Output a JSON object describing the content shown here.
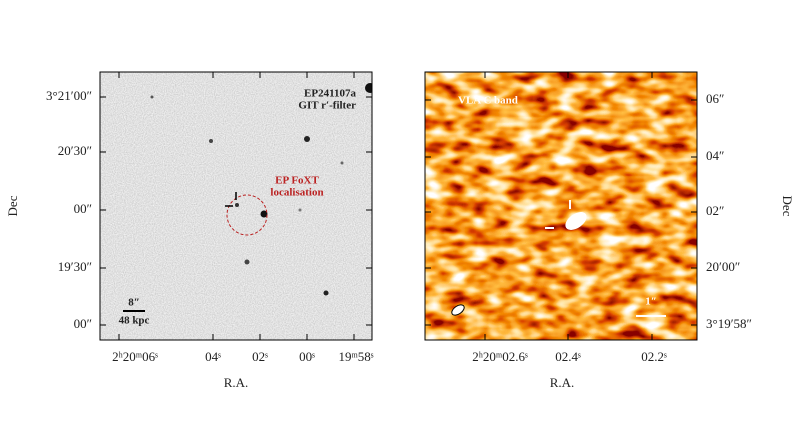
{
  "left_panel": {
    "title": "EP241107a",
    "filter": "GIT r′-filter",
    "annotation_line1": "EP FoXT",
    "annotation_line2": "localisation",
    "scale_angle": "8″",
    "scale_distance": "48 kpc",
    "y_label": "Dec",
    "x_label": "R.A.",
    "y_ticks": [
      "3°21′00″",
      "20′30″",
      "00″",
      "19′30″",
      "00″"
    ],
    "x_ticks": [
      "2ʰ20ᵐ06ˢ",
      "04ˢ",
      "02ˢ",
      "00ˢ",
      "19ᵐ58ˢ"
    ]
  },
  "right_panel": {
    "title": "VLA C band",
    "scale_angle": "1″",
    "y_label": "Dec",
    "x_label": "R.A.",
    "y_ticks": [
      "06″",
      "04″",
      "02″",
      "20′00″",
      "3°19′58″"
    ],
    "x_ticks": [
      "2ʰ20ᵐ02.6ˢ",
      "02.4ˢ",
      "02.2ˢ"
    ]
  }
}
